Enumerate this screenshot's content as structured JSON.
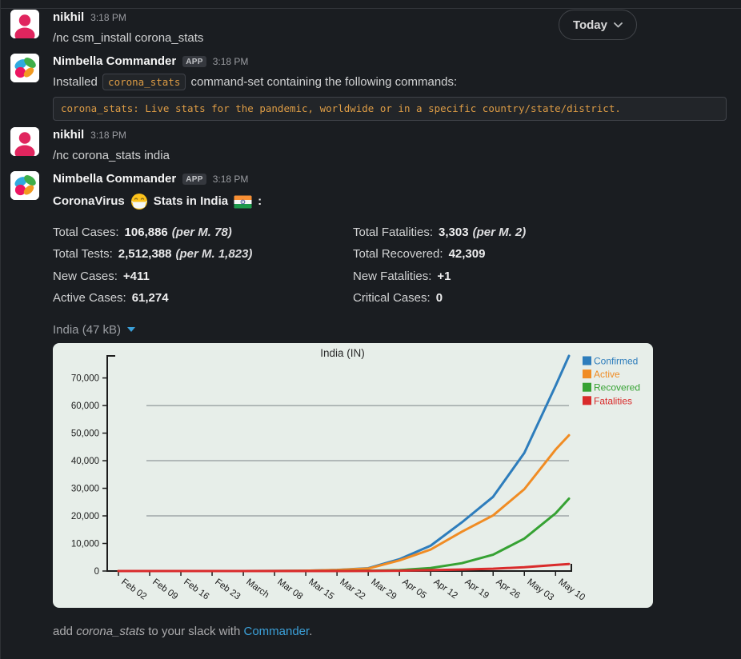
{
  "header": {
    "date_pill_label": "Today"
  },
  "messages": {
    "m1": {
      "author": "nikhil",
      "time": "3:18 PM",
      "text": "/nc csm_install corona_stats"
    },
    "m2": {
      "author": "Nimbella Commander",
      "badge": "APP",
      "time": "3:18 PM",
      "text_prefix": "Installed ",
      "inline_code": "corona_stats",
      "text_suffix": " command-set containing the following commands:",
      "code_block": "corona_stats: Live stats for the pandemic, worldwide or in a specific country/state/district."
    },
    "m3": {
      "author": "nikhil",
      "time": "3:18 PM",
      "text": "/nc corona_stats india"
    },
    "m4": {
      "author": "Nimbella Commander",
      "badge": "APP",
      "time": "3:18 PM",
      "title_part1": "CoronaVirus",
      "title_part2": "Stats in India",
      "title_colon": ":",
      "title_emojis": [
        "mask-face-emoji",
        "india-flag-emoji"
      ],
      "stats_left": [
        {
          "label": "Total Cases:",
          "value": "106,886",
          "note": "(per M. 78)"
        },
        {
          "label": "Total Tests:",
          "value": "2,512,388",
          "note": "(per M. 1,823)"
        },
        {
          "label": "New Cases:",
          "value": "+411",
          "note": ""
        },
        {
          "label": "Active Cases:",
          "value": "61,274",
          "note": ""
        }
      ],
      "stats_right": [
        {
          "label": "Total Fatalities:",
          "value": "3,303",
          "note": "(per M. 2)"
        },
        {
          "label": "Total Recovered:",
          "value": "42,309",
          "note": ""
        },
        {
          "label": "New Fatalities:",
          "value": "+1",
          "note": ""
        },
        {
          "label": "Critical Cases:",
          "value": "0",
          "note": ""
        }
      ],
      "file_label": "India (47 kB)"
    }
  },
  "footer": {
    "part1": "add ",
    "italic_name": "corona_stats",
    "part2": " to your slack with ",
    "link": "Commander",
    "part3": "."
  },
  "colors": {
    "background": "#1a1d21",
    "text": "#d1d2d3",
    "code_orange": "#dd9c45",
    "link_blue": "#3ba0d9",
    "avatar_pink": "#e0255e",
    "chart_background": "#e7eee9"
  },
  "chart_data": {
    "type": "line",
    "title": "India (IN)",
    "xlabel": "",
    "ylabel": "",
    "x_tick_labels": [
      "Feb 02",
      "Feb 09",
      "Feb 16",
      "Feb 23",
      "March",
      "Mar 08",
      "Mar 15",
      "Mar 22",
      "Mar 29",
      "Apr 05",
      "Apr 12",
      "Apr 19",
      "Apr 26",
      "May 03",
      "May 10"
    ],
    "x_days": [
      0,
      7,
      14,
      21,
      28,
      35,
      42,
      49,
      56,
      63,
      70,
      77,
      84,
      91,
      98,
      101
    ],
    "y_ticks": [
      0,
      10000,
      20000,
      30000,
      40000,
      50000,
      60000,
      70000
    ],
    "y_gridlines": [
      20000,
      40000,
      60000
    ],
    "ylim": [
      0,
      78000
    ],
    "grid": "horizontal",
    "legend_position": "top-right",
    "series": [
      {
        "name": "Confirmed",
        "color": "#2e7dbc",
        "values": [
          3,
          3,
          3,
          3,
          3,
          39,
          110,
          396,
          1024,
          4289,
          9205,
          17656,
          26917,
          42836,
          67152,
          78003
        ]
      },
      {
        "name": "Active",
        "color": "#f08c24",
        "values": [
          3,
          3,
          3,
          3,
          3,
          36,
          93,
          362,
          901,
          3851,
          7794,
          14255,
          20177,
          29685,
          44029,
          49219
        ]
      },
      {
        "name": "Recovered",
        "color": "#36a233",
        "values": [
          0,
          0,
          0,
          3,
          3,
          3,
          13,
          27,
          96,
          319,
          1080,
          2842,
          5915,
          11769,
          20917,
          26235
        ]
      },
      {
        "name": "Fatalities",
        "color": "#d92b2b",
        "values": [
          0,
          0,
          0,
          0,
          0,
          0,
          2,
          7,
          27,
          119,
          331,
          559,
          825,
          1389,
          2206,
          2549
        ]
      }
    ]
  }
}
